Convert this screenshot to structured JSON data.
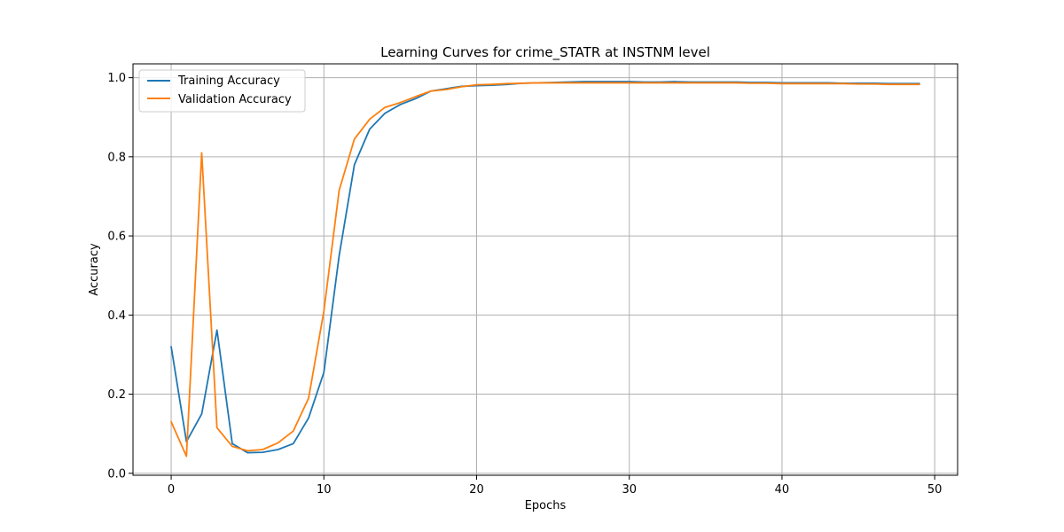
{
  "chart_data": {
    "type": "line",
    "title": "Learning Curves for crime_STATR at INSTNM level",
    "xlabel": "Epochs",
    "ylabel": "Accuracy",
    "xlim": [
      -2.5,
      51.5
    ],
    "ylim": [
      -0.005,
      1.035
    ],
    "xticks": [
      0,
      10,
      20,
      30,
      40,
      50
    ],
    "yticks": [
      0.0,
      0.2,
      0.4,
      0.6,
      0.8,
      1.0
    ],
    "xtick_labels": [
      "0",
      "10",
      "20",
      "30",
      "40",
      "50"
    ],
    "ytick_labels": [
      "0.0",
      "0.2",
      "0.4",
      "0.6",
      "0.8",
      "1.0"
    ],
    "grid": true,
    "legend_position": "top-left",
    "x": [
      0,
      1,
      2,
      3,
      4,
      5,
      6,
      7,
      8,
      9,
      10,
      11,
      12,
      13,
      14,
      15,
      16,
      17,
      18,
      19,
      20,
      21,
      22,
      23,
      24,
      25,
      26,
      27,
      28,
      29,
      30,
      31,
      32,
      33,
      34,
      35,
      36,
      37,
      38,
      39,
      40,
      41,
      42,
      43,
      44,
      45,
      46,
      47,
      48,
      49
    ],
    "series": [
      {
        "name": "Training Accuracy",
        "color": "#1f77b4",
        "values": [
          0.32,
          0.08,
          0.15,
          0.362,
          0.075,
          0.052,
          0.053,
          0.06,
          0.075,
          0.14,
          0.255,
          0.55,
          0.78,
          0.87,
          0.91,
          0.932,
          0.947,
          0.966,
          0.972,
          0.978,
          0.98,
          0.981,
          0.983,
          0.986,
          0.987,
          0.988,
          0.989,
          0.99,
          0.99,
          0.99,
          0.99,
          0.989,
          0.989,
          0.99,
          0.989,
          0.989,
          0.989,
          0.989,
          0.988,
          0.988,
          0.987,
          0.987,
          0.987,
          0.987,
          0.986,
          0.986,
          0.986,
          0.985,
          0.985,
          0.985
        ]
      },
      {
        "name": "Validation Accuracy",
        "color": "#ff7f0e",
        "values": [
          0.13,
          0.043,
          0.81,
          0.115,
          0.068,
          0.057,
          0.06,
          0.077,
          0.107,
          0.19,
          0.41,
          0.715,
          0.845,
          0.895,
          0.925,
          0.937,
          0.952,
          0.966,
          0.97,
          0.977,
          0.982,
          0.983,
          0.985,
          0.986,
          0.987,
          0.987,
          0.987,
          0.987,
          0.987,
          0.987,
          0.987,
          0.987,
          0.987,
          0.987,
          0.987,
          0.987,
          0.987,
          0.987,
          0.986,
          0.986,
          0.985,
          0.985,
          0.985,
          0.985,
          0.985,
          0.984,
          0.984,
          0.983,
          0.983,
          0.983
        ]
      }
    ]
  }
}
